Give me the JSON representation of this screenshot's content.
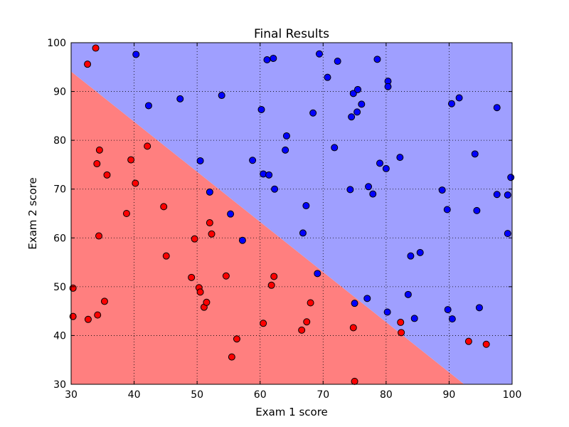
{
  "chart_data": {
    "type": "scatter",
    "title": "Final Results",
    "xlabel": "Exam 1 score",
    "ylabel": "Exam 2 score",
    "xlim": [
      30,
      100
    ],
    "ylim": [
      30,
      100
    ],
    "xticks": [
      30,
      40,
      50,
      60,
      70,
      80,
      90,
      100
    ],
    "yticks": [
      30,
      40,
      50,
      60,
      70,
      80,
      90,
      100
    ],
    "grid": true,
    "legend": "none",
    "decision_boundary": {
      "points": [
        [
          30,
          94.1
        ],
        [
          92.4,
          30
        ]
      ],
      "region_below_color": "#ff7f7f",
      "region_above_color": "#9f9fff"
    },
    "series": [
      {
        "color": "#ff0000",
        "points": [
          [
            33.9,
            98.9
          ],
          [
            32.6,
            95.6
          ],
          [
            34.5,
            78.0
          ],
          [
            34.1,
            75.2
          ],
          [
            35.7,
            72.9
          ],
          [
            39.5,
            76.0
          ],
          [
            40.2,
            71.2
          ],
          [
            42.1,
            78.8
          ],
          [
            38.8,
            65.0
          ],
          [
            44.7,
            66.4
          ],
          [
            34.4,
            60.4
          ],
          [
            45.1,
            56.3
          ],
          [
            49.6,
            59.8
          ],
          [
            52.0,
            63.1
          ],
          [
            52.3,
            60.8
          ],
          [
            30.3,
            49.7
          ],
          [
            30.3,
            43.9
          ],
          [
            32.7,
            43.3
          ],
          [
            34.2,
            44.2
          ],
          [
            35.3,
            47.0
          ],
          [
            49.1,
            51.9
          ],
          [
            50.3,
            49.8
          ],
          [
            50.5,
            48.9
          ],
          [
            51.1,
            45.8
          ],
          [
            51.5,
            46.8
          ],
          [
            54.6,
            52.2
          ],
          [
            56.3,
            39.3
          ],
          [
            55.5,
            35.6
          ],
          [
            60.5,
            42.5
          ],
          [
            61.8,
            50.3
          ],
          [
            62.2,
            52.1
          ],
          [
            66.6,
            41.1
          ],
          [
            67.4,
            42.8
          ],
          [
            68.0,
            46.7
          ],
          [
            74.8,
            41.6
          ],
          [
            75.0,
            30.6
          ],
          [
            82.3,
            42.7
          ],
          [
            82.4,
            40.6
          ],
          [
            93.1,
            38.8
          ],
          [
            95.9,
            38.2
          ]
        ]
      },
      {
        "color": "#0000ff",
        "points": [
          [
            40.3,
            97.6
          ],
          [
            42.3,
            87.1
          ],
          [
            47.3,
            88.5
          ],
          [
            53.9,
            89.2
          ],
          [
            50.5,
            75.8
          ],
          [
            52.0,
            69.4
          ],
          [
            55.3,
            64.9
          ],
          [
            57.2,
            59.5
          ],
          [
            58.8,
            75.9
          ],
          [
            60.2,
            86.3
          ],
          [
            60.5,
            73.1
          ],
          [
            61.4,
            72.9
          ],
          [
            61.1,
            96.5
          ],
          [
            62.1,
            96.8
          ],
          [
            62.3,
            70.0
          ],
          [
            64.0,
            78.0
          ],
          [
            64.2,
            80.9
          ],
          [
            67.3,
            66.6
          ],
          [
            66.8,
            61.0
          ],
          [
            68.4,
            85.6
          ],
          [
            69.1,
            52.7
          ],
          [
            69.4,
            97.7
          ],
          [
            70.7,
            92.9
          ],
          [
            71.8,
            78.5
          ],
          [
            72.3,
            96.2
          ],
          [
            74.3,
            69.9
          ],
          [
            74.5,
            84.8
          ],
          [
            74.8,
            89.6
          ],
          [
            75.4,
            85.8
          ],
          [
            75.5,
            90.4
          ],
          [
            76.1,
            87.4
          ],
          [
            75.0,
            46.6
          ],
          [
            77.0,
            47.6
          ],
          [
            77.2,
            70.5
          ],
          [
            77.9,
            69.0
          ],
          [
            78.6,
            96.6
          ],
          [
            79.0,
            75.3
          ],
          [
            80.0,
            74.2
          ],
          [
            80.2,
            44.8
          ],
          [
            80.3,
            92.1
          ],
          [
            80.3,
            91.0
          ],
          [
            82.2,
            76.5
          ],
          [
            83.5,
            48.4
          ],
          [
            83.9,
            56.3
          ],
          [
            84.5,
            43.5
          ],
          [
            85.4,
            57.0
          ],
          [
            88.9,
            69.8
          ],
          [
            89.7,
            65.8
          ],
          [
            89.8,
            45.3
          ],
          [
            90.4,
            87.5
          ],
          [
            90.5,
            43.4
          ],
          [
            91.6,
            88.7
          ],
          [
            94.1,
            77.2
          ],
          [
            94.4,
            65.6
          ],
          [
            94.8,
            45.7
          ],
          [
            97.6,
            86.7
          ],
          [
            97.6,
            68.9
          ],
          [
            99.3,
            68.8
          ],
          [
            99.3,
            60.9
          ],
          [
            99.8,
            72.4
          ]
        ]
      }
    ]
  }
}
